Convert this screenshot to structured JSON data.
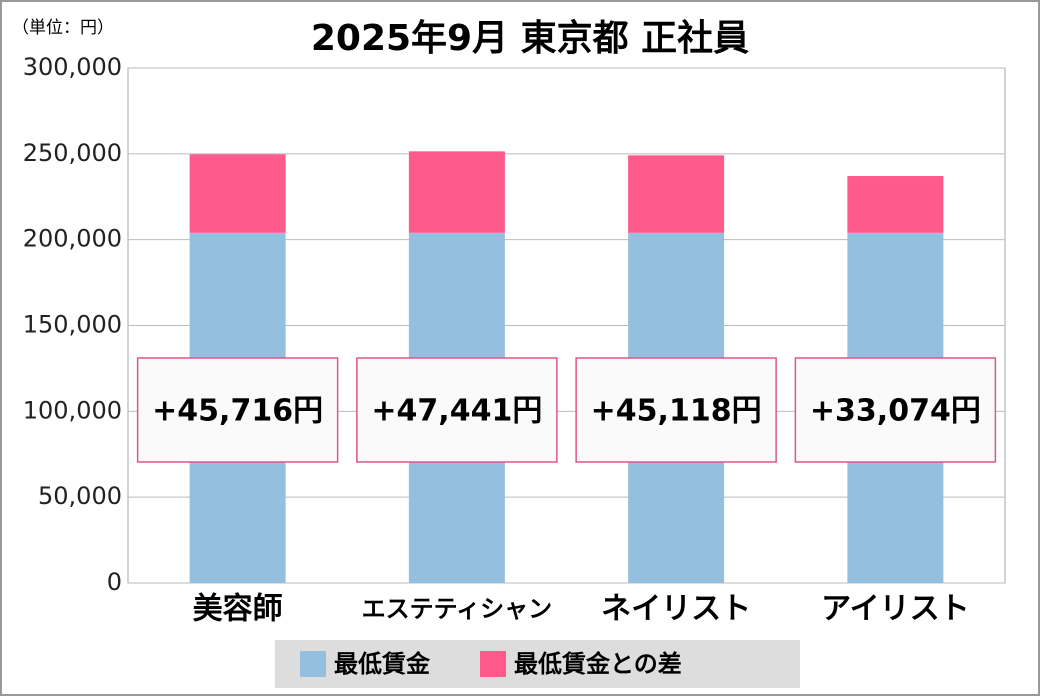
{
  "chart_data": {
    "type": "stacked_bar",
    "title": "2025年9月 東京都 正社員",
    "unit_label": "（単位：円）",
    "categories": [
      "美容師",
      "エステティシャン",
      "ネイリスト",
      "アイリスト"
    ],
    "series": [
      {
        "name": "最低賃金",
        "color": "#94bfdf",
        "values": [
          204000,
          204000,
          204000,
          204000
        ]
      },
      {
        "name": "最低賃金との差",
        "color": "#ff5a8c",
        "values": [
          45716,
          47441,
          45118,
          33074
        ],
        "value_labels": [
          "+45,716円",
          "+47,441円",
          "+45,118円",
          "+33,074円"
        ]
      }
    ],
    "ylim": [
      0,
      300000
    ],
    "yticks": [
      0,
      {
        "value": 50000,
        "label": "50,000"
      },
      {
        "value": 100000,
        "label": "100,000"
      },
      {
        "value": 150000,
        "label": "150,000"
      },
      {
        "value": 200000,
        "label": "200,000"
      },
      {
        "value": 250000,
        "label": "250,000"
      },
      {
        "value": 300000,
        "label": "300,000"
      }
    ],
    "grid": true
  }
}
